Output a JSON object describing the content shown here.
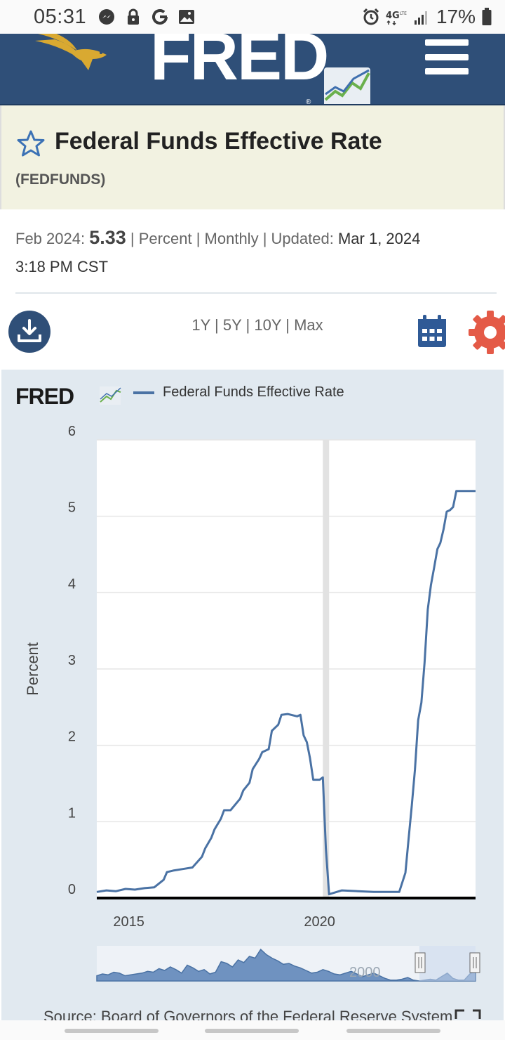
{
  "status_bar": {
    "time": "05:31",
    "icons": [
      "messenger-icon",
      "lock-icon",
      "google-icon",
      "image-icon"
    ],
    "right_icons": [
      "alarm-icon",
      "4g-lte-icon",
      "signal-icon"
    ],
    "battery": "17%"
  },
  "header": {
    "logo_text": "FRED",
    "logo_mark": "®"
  },
  "series": {
    "title": "Federal Funds Effective Rate",
    "id": "(FEDFUNDS)"
  },
  "meta": {
    "period_label": "Feb 2024:",
    "value": "5.33",
    "sep1": "|",
    "units": "Percent",
    "sep2": "|",
    "frequency": "Monthly",
    "sep3": "|",
    "updated_label": "Updated:",
    "updated_value": "Mar 1, 2024",
    "updated_time": "3:18 PM CST"
  },
  "range": {
    "options": [
      "1Y",
      "5Y",
      "10Y",
      "Max"
    ],
    "separator": "|"
  },
  "colors": {
    "header_bg": "#2f4f78",
    "title_band_bg": "#f2f2e1",
    "series_line": "#4a72a4",
    "gear": "#e45a47",
    "panel_bg": "#e1e9f0",
    "recession_shade": "#e2e2e2"
  },
  "chart_data": {
    "type": "line",
    "brand": "FRED",
    "legend": "Federal Funds Effective Rate",
    "ylabel": "Percent",
    "ylim": [
      0,
      6
    ],
    "yticks": [
      "0",
      "1",
      "2",
      "3",
      "4",
      "5",
      "6"
    ],
    "xticks": [
      "2015",
      "2020"
    ],
    "xlim": [
      "2014-03-01",
      "2024-02-01"
    ],
    "grid": true,
    "recession": [
      "2020-02-01",
      "2020-04-01"
    ],
    "series": [
      {
        "name": "Federal Funds Effective Rate",
        "x": [
          "2014-03-01",
          "2014-06-01",
          "2014-09-01",
          "2014-12-01",
          "2015-03-01",
          "2015-06-01",
          "2015-09-01",
          "2015-12-01",
          "2016-01-01",
          "2016-03-01",
          "2016-06-01",
          "2016-09-01",
          "2016-12-01",
          "2017-01-01",
          "2017-03-01",
          "2017-04-01",
          "2017-06-01",
          "2017-07-01",
          "2017-09-01",
          "2017-12-01",
          "2018-01-01",
          "2018-03-01",
          "2018-04-01",
          "2018-06-01",
          "2018-07-01",
          "2018-09-01",
          "2018-10-01",
          "2018-12-01",
          "2019-01-01",
          "2019-03-01",
          "2019-06-01",
          "2019-07-01",
          "2019-08-01",
          "2019-09-01",
          "2019-10-01",
          "2019-11-01",
          "2020-01-01",
          "2020-02-01",
          "2020-03-01",
          "2020-04-01",
          "2020-08-01",
          "2021-01-01",
          "2021-06-01",
          "2021-12-01",
          "2022-02-01",
          "2022-03-01",
          "2022-04-01",
          "2022-05-01",
          "2022-06-01",
          "2022-07-01",
          "2022-08-01",
          "2022-09-01",
          "2022-10-01",
          "2022-11-01",
          "2022-12-01",
          "2023-01-01",
          "2023-02-01",
          "2023-03-01",
          "2023-04-01",
          "2023-05-01",
          "2023-06-01",
          "2023-07-01",
          "2023-08-01",
          "2024-02-01"
        ],
        "values": [
          0.08,
          0.1,
          0.09,
          0.12,
          0.11,
          0.13,
          0.14,
          0.24,
          0.34,
          0.36,
          0.38,
          0.4,
          0.54,
          0.65,
          0.79,
          0.9,
          1.04,
          1.15,
          1.15,
          1.3,
          1.41,
          1.51,
          1.69,
          1.82,
          1.91,
          1.95,
          2.19,
          2.27,
          2.4,
          2.41,
          2.38,
          2.4,
          2.13,
          2.04,
          1.83,
          1.55,
          1.55,
          1.58,
          0.65,
          0.05,
          0.1,
          0.09,
          0.08,
          0.08,
          0.08,
          0.2,
          0.33,
          0.77,
          1.21,
          1.68,
          2.33,
          2.56,
          3.08,
          3.78,
          4.1,
          4.33,
          4.57,
          4.65,
          4.83,
          5.06,
          5.08,
          5.12,
          5.33,
          5.33
        ]
      }
    ],
    "overview": {
      "label": "2000"
    }
  },
  "source": {
    "text": "Source: Board of Governors of the Federal Reserve System"
  }
}
